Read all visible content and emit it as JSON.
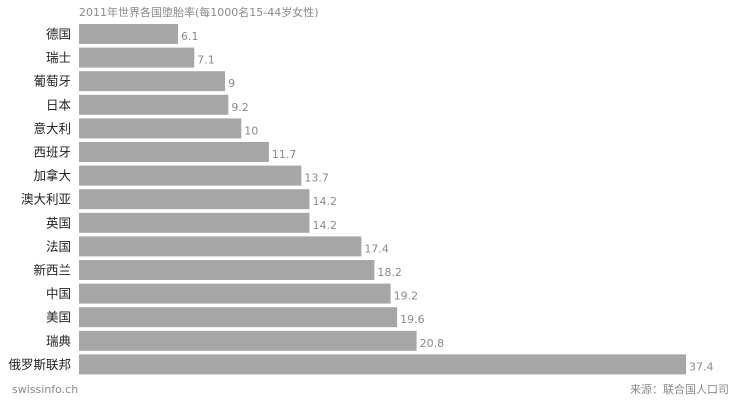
{
  "chart_data": {
    "type": "bar",
    "orientation": "horizontal",
    "title": "2011年世界各国堕胎率(每1000名15-44岁女性)",
    "categories": [
      "德国",
      "瑞士",
      "葡萄牙",
      "日本",
      "意大利",
      "西班牙",
      "加拿大",
      "澳大利亚",
      "英国",
      "法国",
      "新西兰",
      "中国",
      "美国",
      "瑞典",
      "俄罗斯联邦"
    ],
    "values": [
      6.1,
      7.1,
      9,
      9.2,
      10,
      11.7,
      13.7,
      14.2,
      14.2,
      17.4,
      18.2,
      19.2,
      19.6,
      20.8,
      37.4
    ],
    "value_labels": [
      "6.1",
      "7.1",
      "9",
      "9.2",
      "10",
      "11.7",
      "13.7",
      "14.2",
      "14.2",
      "17.4",
      "18.2",
      "19.2",
      "19.6",
      "20.8",
      "37.4"
    ],
    "xlabel": "",
    "ylabel": "",
    "xlim": [
      0,
      37.4
    ],
    "grid": false,
    "bar_color": "#a6a6a6"
  },
  "footer": {
    "brand": "swissinfo.ch",
    "source": "来源：联合国人口司"
  }
}
